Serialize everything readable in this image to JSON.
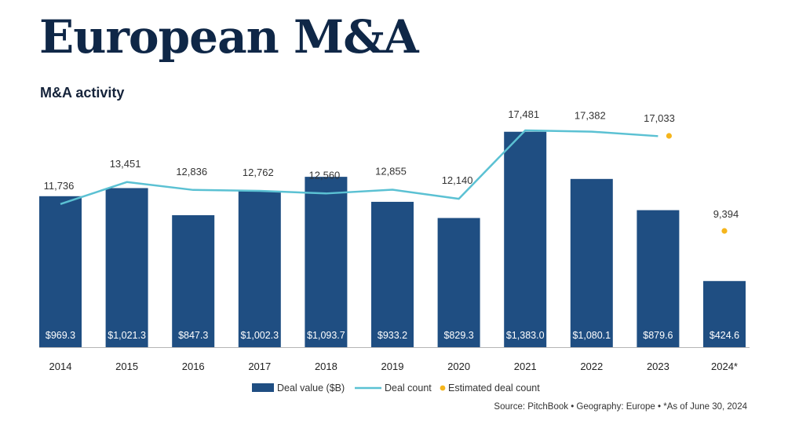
{
  "title": "European M&A",
  "subtitle": "M&A activity",
  "source": "Source: PitchBook • Geography: Europe • *As of June 30, 2024",
  "colors": {
    "bar": "#1f4e82",
    "line": "#5bc1d3",
    "estimate": "#f5b51c",
    "axis": "#b5b5b5"
  },
  "chart_data": {
    "type": "bar",
    "categories": [
      "2014",
      "2015",
      "2016",
      "2017",
      "2018",
      "2019",
      "2020",
      "2021",
      "2022",
      "2023",
      "2024*"
    ],
    "series": [
      {
        "name": "Deal value ($B)",
        "type": "bar",
        "values": [
          969.3,
          1021.3,
          847.3,
          1002.3,
          1093.7,
          933.2,
          829.3,
          1383.0,
          1080.1,
          879.6,
          424.6
        ],
        "labels": [
          "$969.3",
          "$1,021.3",
          "$847.3",
          "$1,002.3",
          "$1,093.7",
          "$933.2",
          "$829.3",
          "$1,383.0",
          "$1,080.1",
          "$879.6",
          "$424.6"
        ]
      },
      {
        "name": "Deal count",
        "type": "line",
        "values": [
          11736,
          13451,
          12836,
          12762,
          12560,
          12855,
          12140,
          17481,
          17382,
          null,
          null
        ],
        "labels": [
          "11,736",
          "13,451",
          "12,836",
          "12,762",
          "12,560",
          "12,855",
          "12,140",
          "17,481",
          "17,382",
          "",
          ""
        ]
      },
      {
        "name": "Estimated deal count",
        "type": "scatter",
        "values": [
          null,
          null,
          null,
          null,
          null,
          null,
          null,
          null,
          null,
          17033,
          9394
        ],
        "labels": [
          "",
          "",
          "",
          "",
          "",
          "",
          "",
          "",
          "",
          "17,033",
          "9,394"
        ]
      }
    ],
    "legend": [
      "Deal value ($B)",
      "Deal count",
      "Estimated deal count"
    ],
    "legend_position": "bottom",
    "grid": false
  }
}
